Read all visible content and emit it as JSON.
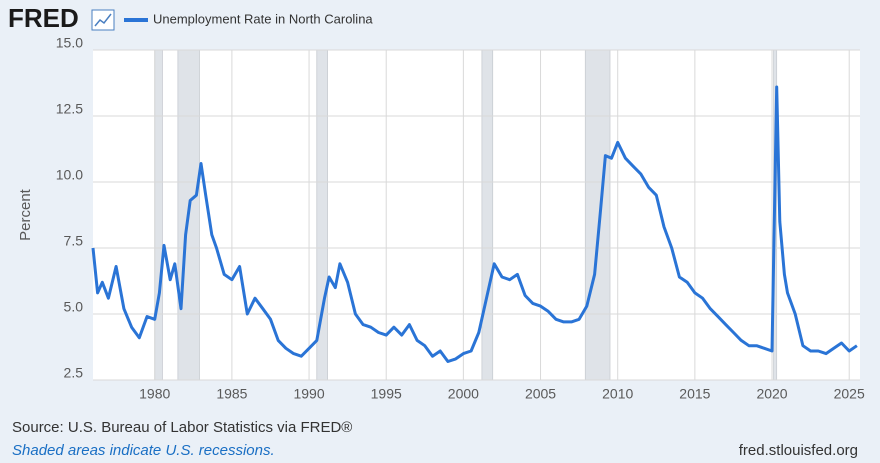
{
  "chart_data": {
    "type": "line",
    "logo": "FRED",
    "series": [
      {
        "name": "Unemployment Rate in North Carolina",
        "color": "#2a74d6",
        "x": [
          1976.0,
          1976.3,
          1976.6,
          1977.0,
          1977.5,
          1978.0,
          1978.5,
          1979.0,
          1979.5,
          1980.0,
          1980.3,
          1980.6,
          1981.0,
          1981.3,
          1981.7,
          1982.0,
          1982.3,
          1982.7,
          1983.0,
          1983.3,
          1983.7,
          1984.0,
          1984.5,
          1985.0,
          1985.5,
          1986.0,
          1986.5,
          1987.0,
          1987.5,
          1988.0,
          1988.5,
          1989.0,
          1989.5,
          1990.0,
          1990.5,
          1991.0,
          1991.3,
          1991.7,
          1992.0,
          1992.5,
          1993.0,
          1993.5,
          1994.0,
          1994.5,
          1995.0,
          1995.5,
          1996.0,
          1996.5,
          1997.0,
          1997.5,
          1998.0,
          1998.5,
          1999.0,
          1999.5,
          2000.0,
          2000.5,
          2001.0,
          2001.5,
          2002.0,
          2002.5,
          2003.0,
          2003.5,
          2004.0,
          2004.5,
          2005.0,
          2005.5,
          2006.0,
          2006.5,
          2007.0,
          2007.5,
          2008.0,
          2008.5,
          2008.9,
          2009.2,
          2009.6,
          2010.0,
          2010.5,
          2011.0,
          2011.5,
          2012.0,
          2012.5,
          2013.0,
          2013.5,
          2014.0,
          2014.5,
          2015.0,
          2015.5,
          2016.0,
          2016.5,
          2017.0,
          2017.5,
          2018.0,
          2018.5,
          2019.0,
          2019.5,
          2020.0,
          2020.3,
          2020.5,
          2020.8,
          2021.0,
          2021.5,
          2022.0,
          2022.5,
          2023.0,
          2023.5,
          2024.0,
          2024.5,
          2025.0,
          2025.5
        ],
        "values": [
          7.5,
          5.8,
          6.2,
          5.6,
          6.8,
          5.2,
          4.5,
          4.1,
          4.9,
          4.8,
          5.8,
          7.6,
          6.3,
          6.9,
          5.2,
          8.0,
          9.3,
          9.5,
          10.7,
          9.5,
          8.0,
          7.5,
          6.5,
          6.3,
          6.8,
          5.0,
          5.6,
          5.2,
          4.8,
          4.0,
          3.7,
          3.5,
          3.4,
          3.7,
          4.0,
          5.6,
          6.4,
          6.0,
          6.9,
          6.2,
          5.0,
          4.6,
          4.5,
          4.3,
          4.2,
          4.5,
          4.2,
          4.6,
          4.0,
          3.8,
          3.4,
          3.6,
          3.2,
          3.3,
          3.5,
          3.6,
          4.3,
          5.6,
          6.9,
          6.4,
          6.3,
          6.5,
          5.7,
          5.4,
          5.3,
          5.1,
          4.8,
          4.7,
          4.7,
          4.8,
          5.3,
          6.5,
          9.0,
          11.0,
          10.9,
          11.5,
          10.9,
          10.6,
          10.3,
          9.8,
          9.5,
          8.3,
          7.5,
          6.4,
          6.2,
          5.8,
          5.6,
          5.2,
          4.9,
          4.6,
          4.3,
          4.0,
          3.8,
          3.8,
          3.7,
          3.6,
          13.6,
          8.5,
          6.5,
          5.8,
          5.0,
          3.8,
          3.6,
          3.6,
          3.5,
          3.7,
          3.9,
          3.6,
          3.8
        ]
      }
    ],
    "recessions": [
      [
        1980.0,
        1980.5
      ],
      [
        1981.5,
        1982.9
      ],
      [
        1990.5,
        1991.2
      ],
      [
        2001.2,
        2001.9
      ],
      [
        2007.9,
        2009.5
      ],
      [
        2020.1,
        2020.3
      ]
    ],
    "ylabel": "Percent",
    "xlim": [
      1976.0,
      2025.7
    ],
    "xticks": [
      1980,
      1985,
      1990,
      1995,
      2000,
      2005,
      2010,
      2015,
      2020,
      2025
    ],
    "ylim": [
      2.5,
      15
    ],
    "yticks": [
      2.5,
      {
        "value": 5,
        "label": "5.0"
      },
      7.5,
      {
        "value": 10,
        "label": "10.0"
      },
      12.5,
      {
        "value": 15,
        "label": "15.0"
      }
    ],
    "grid": true,
    "source": "Source: U.S. Bureau of Labor Statistics via FRED®",
    "note": "Shaded areas indicate U.S. recessions.",
    "credit": "fred.stlouisfed.org"
  }
}
